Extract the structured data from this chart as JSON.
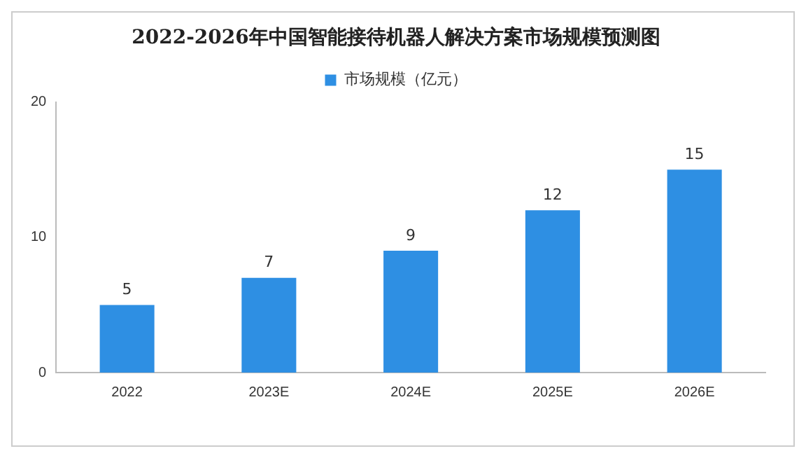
{
  "chart_data": {
    "type": "bar",
    "title": "2022-2026年中国智能接待机器人解决方案市场规模预测图",
    "categories": [
      "2022",
      "2023E",
      "2024E",
      "2025E",
      "2026E"
    ],
    "series": [
      {
        "name": "市场规模（亿元）",
        "color": "#2e8fe3",
        "values": [
          5,
          7,
          9,
          12,
          15
        ]
      }
    ],
    "ylim": [
      0,
      20
    ],
    "yticks": [
      0,
      10,
      20
    ],
    "grid": false,
    "legend": "top",
    "data_labels": true
  }
}
